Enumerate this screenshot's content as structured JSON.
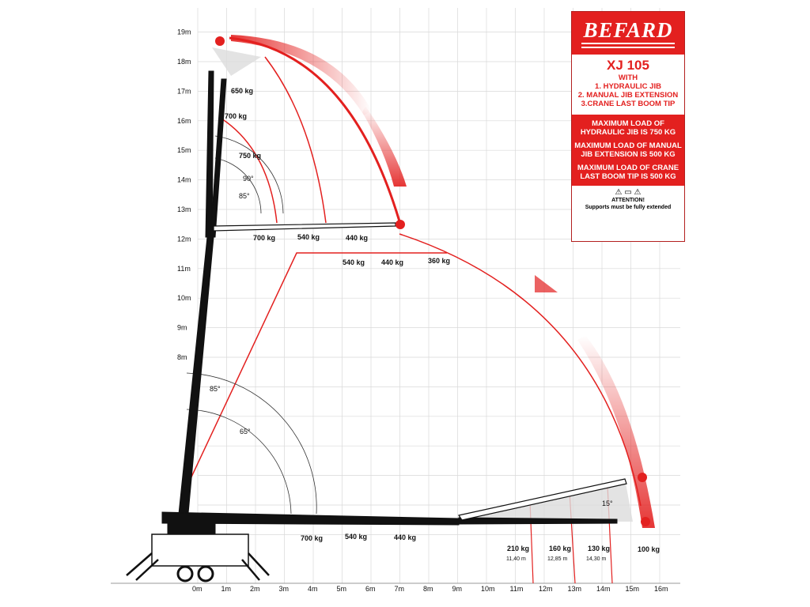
{
  "brand": "BEFARD",
  "model": "XJ 105",
  "with_label": "WITH",
  "features": [
    "1. HYDRAULIC JIB",
    "2. MANUAL JIB EXTENSION",
    "3.CRANE LAST BOOM TIP"
  ],
  "info": [
    "MAXIMUM LOAD OF HYDRAULIC JIB IS 750 KG",
    "MAXIMUM LOAD OF MANUAL JIB EXTENSION IS 500 KG",
    "MAXIMUM LOAD OF CRANE LAST BOOM TIP IS 500 KG"
  ],
  "attention": {
    "icon": "crane-warning-icon",
    "title": "ATTENTION!",
    "text": "Supports must be fully extended"
  },
  "colors": {
    "red": "#e3201f",
    "crane": "#111111",
    "grid": "#d9d9d9"
  },
  "axes": {
    "x_ticks": [
      "0m",
      "1m",
      "2m",
      "3m",
      "4m",
      "5m",
      "6m",
      "7m",
      "8m",
      "9m",
      "10m",
      "11m",
      "12m",
      "13m",
      "14m",
      "15m",
      "16m"
    ],
    "y_ticks": [
      "8m",
      "9m",
      "10m",
      "11m",
      "12m",
      "13m",
      "14m",
      "15m",
      "16m",
      "17m",
      "18m",
      "19m"
    ]
  },
  "labels": {
    "top_jib": [
      "650 kg",
      "700 kg",
      "750 kg"
    ],
    "top_angles": [
      "90°",
      "85°"
    ],
    "mid_boom": [
      "700 kg",
      "540 kg",
      "440 kg"
    ],
    "mid_ext": [
      "540 kg",
      "440 kg",
      "360 kg"
    ],
    "low_angles": [
      "85°",
      "65°"
    ],
    "base_boom": [
      "700 kg",
      "540 kg",
      "440 kg"
    ],
    "tip_loads": [
      "210 kg",
      "160 kg",
      "130 kg",
      "100 kg"
    ],
    "tip_dist": [
      "11,40 m",
      "12,85 m",
      "14,30 m"
    ],
    "tip_angle": "15°"
  }
}
